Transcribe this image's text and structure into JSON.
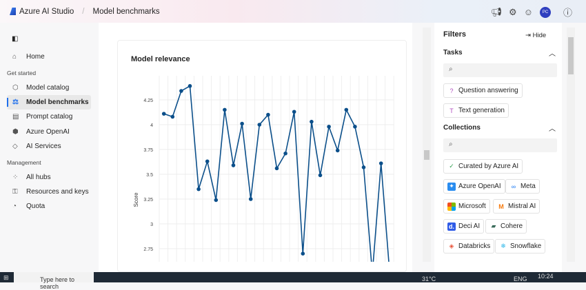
{
  "header": {
    "app_title": "Azure AI Studio",
    "page": "Model benchmarks",
    "avatar_initials": "PC"
  },
  "sidebar": {
    "home": "Home",
    "section1": "Get started",
    "items1": [
      {
        "label": "Model catalog",
        "icon": "cube-icon"
      },
      {
        "label": "Model benchmarks",
        "icon": "scale-icon",
        "active": true
      },
      {
        "label": "Prompt catalog",
        "icon": "prompt-icon"
      },
      {
        "label": "Azure OpenAI",
        "icon": "openai-icon"
      },
      {
        "label": "AI Services",
        "icon": "ai-services-icon"
      }
    ],
    "section2": "Management",
    "items2": [
      {
        "label": "All hubs",
        "icon": "hubs-icon"
      },
      {
        "label": "Resources and keys",
        "icon": "key-icon"
      },
      {
        "label": "Quota",
        "icon": "quota-icon"
      }
    ]
  },
  "main": {
    "card_title": "Model relevance"
  },
  "chart_data": {
    "type": "line",
    "title": "Model relevance",
    "ylabel": "Score",
    "xlabel": "",
    "yticks": [
      "4.25",
      "4",
      "3.75",
      "3.5",
      "3.25",
      "3",
      "2.75"
    ],
    "ylim": [
      2.62,
      4.45
    ],
    "grid": true,
    "color": "#0b4f8a",
    "values": [
      4.11,
      4.08,
      4.34,
      4.39,
      3.35,
      3.63,
      3.24,
      4.15,
      3.59,
      4.01,
      3.25,
      4.0,
      4.1,
      3.56,
      3.71,
      4.13,
      2.7,
      4.03,
      3.49,
      3.98,
      3.74,
      4.15,
      3.98,
      3.57,
      2.5,
      3.61,
      2.5
    ]
  },
  "filters": {
    "title": "Filters",
    "hide": "Hide",
    "tasks_label": "Tasks",
    "collections_label": "Collections",
    "tasks": [
      "Question answering",
      "Text generation"
    ],
    "collections": [
      "Curated by Azure AI",
      "Azure OpenAI",
      "Meta",
      "Microsoft",
      "Mistral AI",
      "Deci AI",
      "Cohere",
      "Databricks",
      "Snowflake"
    ]
  },
  "taskbar": {
    "search_placeholder": "Type here to search",
    "temperature": "31°C",
    "language": "ENG",
    "time": "10:24"
  }
}
